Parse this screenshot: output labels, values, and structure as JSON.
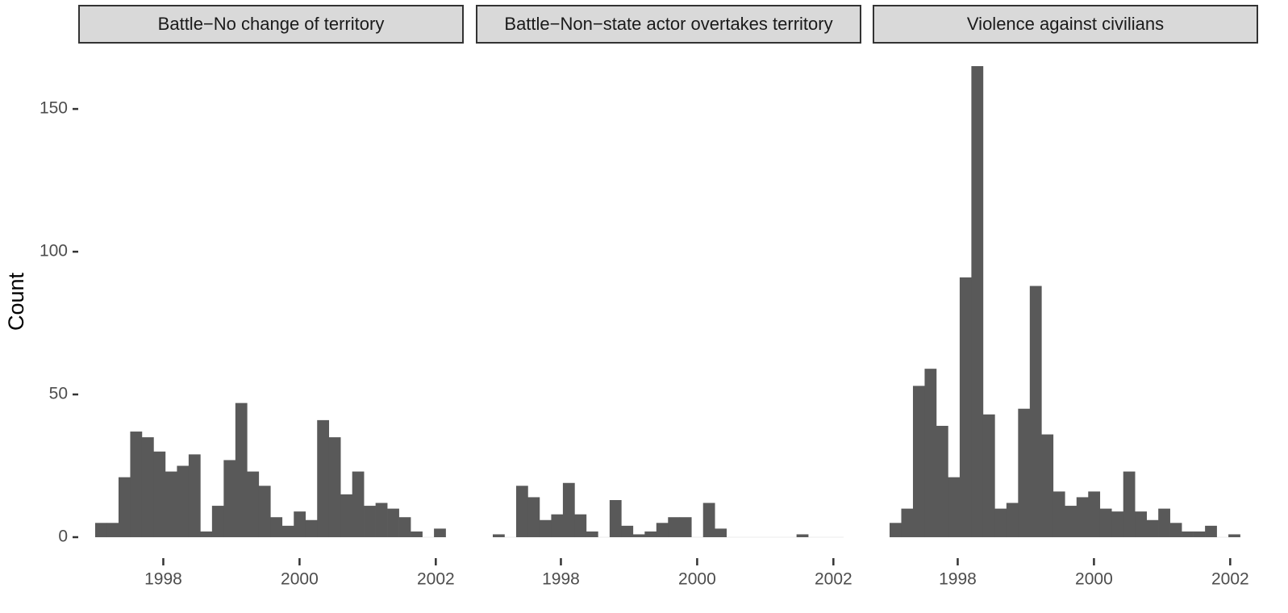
{
  "chart_data": {
    "type": "bar",
    "ylabel": "Count",
    "xlabel": "",
    "ylim": [
      0,
      165
    ],
    "y_ticks": [
      "0",
      "50",
      "100",
      "150"
    ],
    "x_ticks": [
      "1998",
      "2000",
      "2002"
    ],
    "bin_width_years": 0.1715,
    "bar_color": "#595959",
    "strip_color": "#d9d9d9",
    "panels": [
      {
        "label": "Battle−No change of territory",
        "bin_start": 1997.0,
        "values": [
          5,
          5,
          21,
          37,
          35,
          30,
          23,
          25,
          29,
          2,
          11,
          27,
          47,
          23,
          18,
          7,
          4,
          9,
          6,
          41,
          35,
          15,
          23,
          11,
          12,
          10,
          7,
          2,
          0,
          3
        ]
      },
      {
        "label": "Battle−Non−state actor overtakes territory",
        "bin_start": 1997.0,
        "values": [
          1,
          0,
          18,
          14,
          6,
          8,
          19,
          8,
          2,
          0,
          13,
          4,
          1,
          2,
          5,
          7,
          7,
          0,
          12,
          3,
          0,
          0,
          0,
          0,
          0,
          0,
          1,
          0,
          0,
          0
        ]
      },
      {
        "label": "Violence against civilians",
        "bin_start": 1997.0,
        "values": [
          5,
          10,
          53,
          59,
          39,
          21,
          91,
          165,
          43,
          10,
          12,
          45,
          88,
          36,
          16,
          11,
          14,
          16,
          10,
          9,
          23,
          9,
          6,
          10,
          5,
          2,
          2,
          4,
          0,
          1
        ]
      }
    ]
  }
}
